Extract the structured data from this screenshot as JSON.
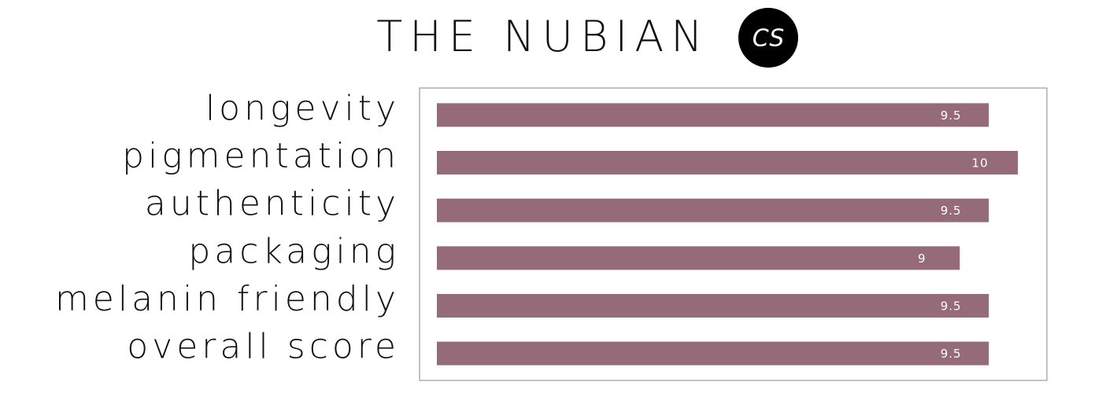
{
  "chart_data": {
    "type": "bar",
    "orientation": "horizontal",
    "title": "THE NUBIAN",
    "logo": "CS",
    "categories": [
      "longevity",
      "pigmentation",
      "authenticity",
      "packaging",
      "melanin friendly",
      "overall score"
    ],
    "values": [
      9.5,
      10,
      9.5,
      9,
      9.5,
      9.5
    ],
    "color": "#956b79",
    "xlim": [
      0,
      10.5
    ]
  }
}
